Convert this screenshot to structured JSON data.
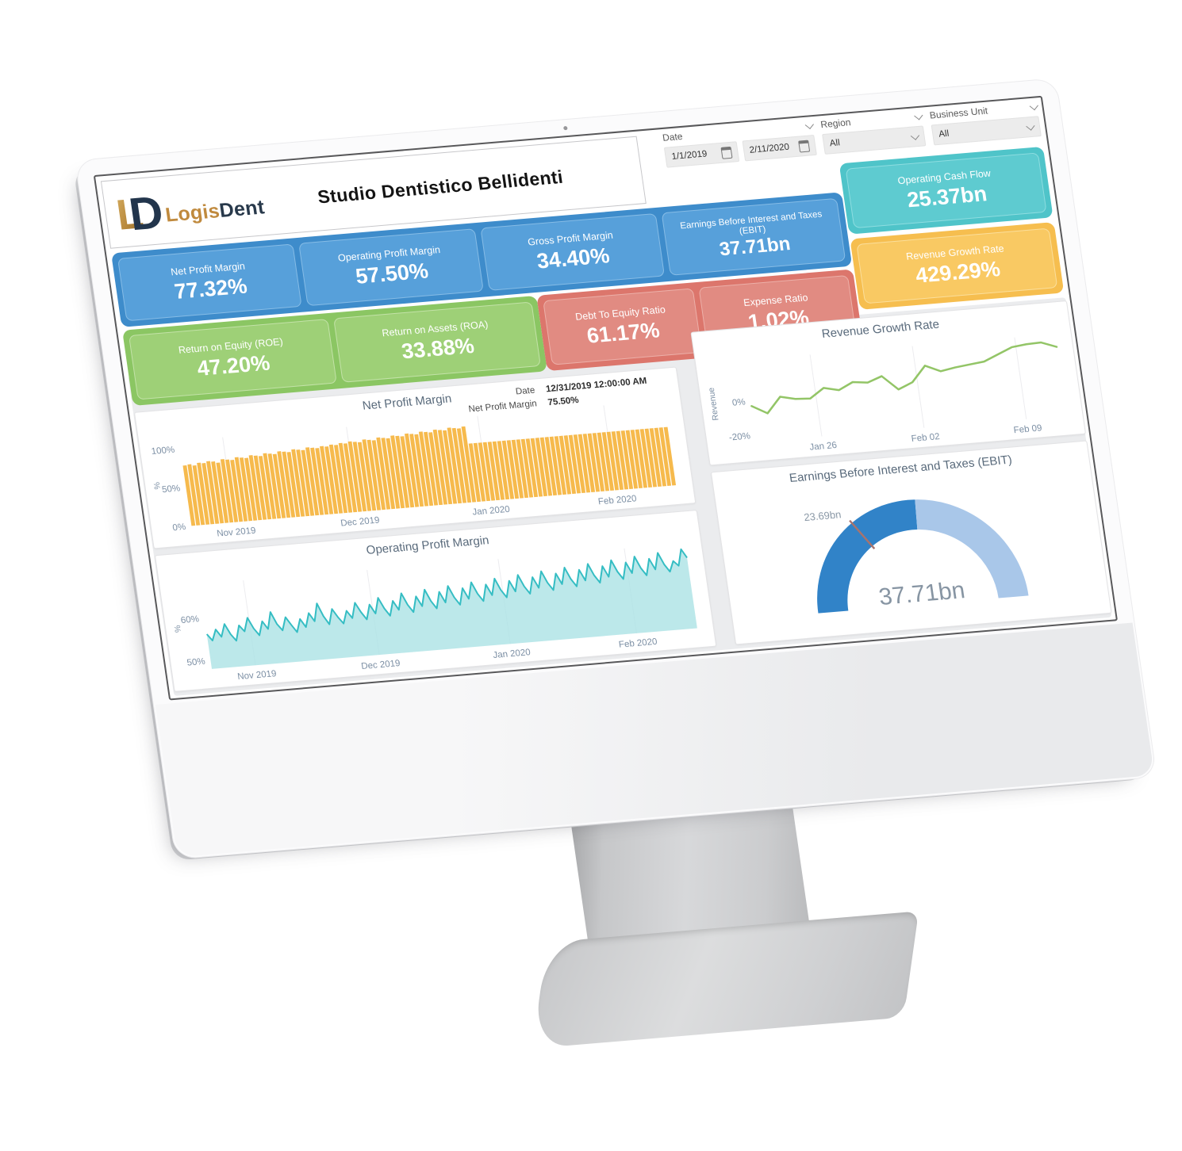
{
  "header": {
    "title": "Studio Dentistico  Bellidenti",
    "brand_first": "Logis",
    "brand_second": "Dent"
  },
  "filters": {
    "date": {
      "label": "Date",
      "start": "1/1/2019",
      "end": "2/11/2020"
    },
    "region": {
      "label": "Region",
      "value": "All"
    },
    "business_unit": {
      "label": "Business Unit",
      "value": "All"
    }
  },
  "kpis": {
    "blue": [
      {
        "label": "Net Profit Margin",
        "value": "77.32%"
      },
      {
        "label": "Operating Profit Margin",
        "value": "57.50%"
      },
      {
        "label": "Gross Profit Margin",
        "value": "34.40%"
      },
      {
        "label": "Earnings Before Interest and Taxes (EBIT)",
        "value": "37.71bn"
      }
    ],
    "teal": {
      "label": "Operating Cash Flow",
      "value": "25.37bn"
    },
    "yellow": {
      "label": "Revenue Growth Rate",
      "value": "429.29%"
    },
    "green": [
      {
        "label": "Return on Equity (ROE)",
        "value": "47.20%"
      },
      {
        "label": "Return on Assets (ROA)",
        "value": "33.88%"
      }
    ],
    "red": [
      {
        "label": "Debt To Equity Ratio",
        "value": "61.17%"
      },
      {
        "label": "Expense Ratio",
        "value": "1.02%"
      }
    ]
  },
  "colors": {
    "blue_panel": "#3E8CCB",
    "blue_card": "#57A0DA",
    "green_panel": "#8BC663",
    "green_card": "#9ED077",
    "red_panel": "#DC766C",
    "red_card": "#E18B82",
    "teal_panel": "#4FC4C9",
    "teal_card": "#5ECBD0",
    "yellow_panel": "#F6BE4F",
    "yellow_card": "#F9C963",
    "axis_text": "#7C8FA4",
    "title_text": "#5A6B7C"
  },
  "chart_data": [
    {
      "type": "bar",
      "title": "Net Profit Margin",
      "ylabel": "%",
      "x_ticks": [
        "Nov 2019",
        "Dec 2019",
        "Jan 2020",
        "Feb 2020"
      ],
      "y_ticks": [
        {
          "label": "100%",
          "value": 100
        },
        {
          "label": "50%",
          "value": 50
        },
        {
          "label": "0%",
          "value": 0
        }
      ],
      "ylim": [
        0,
        110
      ],
      "color": "#F6BA4D",
      "tooltip": {
        "date_label": "Date",
        "date_value": "12/31/2019 12:00:00 AM",
        "series_label": "Net Profit Margin",
        "series_value": "75.50%"
      },
      "values": [
        78,
        79,
        77,
        80,
        79,
        81,
        80,
        78,
        82,
        81,
        80,
        83,
        82,
        81,
        84,
        83,
        82,
        85,
        84,
        83,
        86,
        85,
        84,
        87,
        86,
        85,
        88,
        87,
        86,
        88,
        87,
        89,
        88,
        90,
        89,
        91,
        90,
        89,
        92,
        91,
        90,
        93,
        92,
        91,
        94,
        93,
        92,
        95,
        94,
        93,
        96,
        95,
        94,
        97,
        96,
        95,
        98,
        97,
        96,
        98,
        75.5,
        75.5,
        75.5,
        75.5,
        75.5,
        75.5,
        75.5,
        75.5,
        75.5,
        75.5,
        75.5,
        75.5,
        75.5,
        75.5,
        75.5,
        75.5,
        75.5,
        75.5,
        75.5,
        75.5,
        75.5,
        75.5,
        75.5,
        75.5,
        75.5,
        75.5,
        75.5,
        75.5,
        75.5,
        75.5,
        75.5,
        75.5,
        75.5,
        75.5,
        75.5,
        75.5,
        75.5,
        75.5,
        75.5,
        75.5,
        75.5,
        75.5
      ]
    },
    {
      "type": "line",
      "title": "Revenue Growth Rate",
      "ylabel": "Revenue",
      "x_ticks": [
        "Jan 26",
        "Feb 02",
        "Feb 09"
      ],
      "y_ticks": [
        {
          "label": "0%",
          "value": 0
        },
        {
          "label": "-20%",
          "value": -20
        }
      ],
      "ylim": [
        -24,
        24
      ],
      "color": "#93C567",
      "values": [
        -3,
        -8,
        1,
        -1,
        -1.5,
        4,
        2,
        6,
        5,
        8,
        -0.5,
        3,
        12,
        8,
        9.5,
        10.5,
        11.5,
        15,
        18.5,
        19.5,
        19.8,
        16.5
      ]
    },
    {
      "type": "area",
      "title": "Operating Profit Margin",
      "ylabel": "%",
      "x_ticks": [
        "Nov 2019",
        "Dec 2019",
        "Jan 2020",
        "Feb 2020"
      ],
      "y_ticks": [
        {
          "label": "60%",
          "value": 60
        },
        {
          "label": "50%",
          "value": 50
        }
      ],
      "ylim": [
        48,
        68
      ],
      "line_color": "#35BDC3",
      "fill": "#ABE2E5",
      "values": [
        56.2,
        54.6,
        57.1,
        55.3,
        58.2,
        55.7,
        54.1,
        57.6,
        56.1,
        59.2,
        56.6,
        54.9,
        58.1,
        56.2,
        60.1,
        57.2,
        55.6,
        58.6,
        56.7,
        54.9,
        57.9,
        55.9,
        59.1,
        57.1,
        61.2,
        58.1,
        56.1,
        59.6,
        57.6,
        56,
        58.9,
        57.1,
        60.6,
        58.3,
        56.5,
        59.9,
        57.7,
        61.3,
        58.7,
        56.9,
        60.3,
        58.1,
        61.9,
        59.1,
        57.3,
        60.9,
        58.5,
        62.3,
        59.5,
        57.7,
        61.5,
        58.9,
        62.7,
        59.9,
        58.1,
        61.9,
        59.3,
        63.1,
        60.3,
        58.5,
        62.3,
        59.7,
        63.5,
        60.7,
        58.9,
        62.7,
        60.1,
        63.9,
        61.1,
        59.3,
        63.1,
        60.5,
        64.3,
        61.5,
        59.7,
        63.5,
        60.9,
        64.7,
        61.9,
        60.1,
        63.9,
        61.3,
        65.1,
        62.3,
        60.5,
        64.3,
        61.7,
        65.5,
        62.7,
        60.9,
        64.7,
        62.1,
        65.9,
        63.1,
        61.3,
        65.1,
        62.5,
        66.3,
        63.5,
        61.7,
        64.1,
        62.9,
        66.7,
        64.6
      ]
    },
    {
      "type": "gauge",
      "title": "Earnings Before Interest and Taxes (EBIT)",
      "value_label": "37.71bn",
      "target_label": "23.69bn",
      "fill_fraction": 0.52,
      "target_fraction": 0.31,
      "color_dark": "#3183C8",
      "color_light": "#A9C7E9",
      "target_color": "#A8736D"
    }
  ]
}
